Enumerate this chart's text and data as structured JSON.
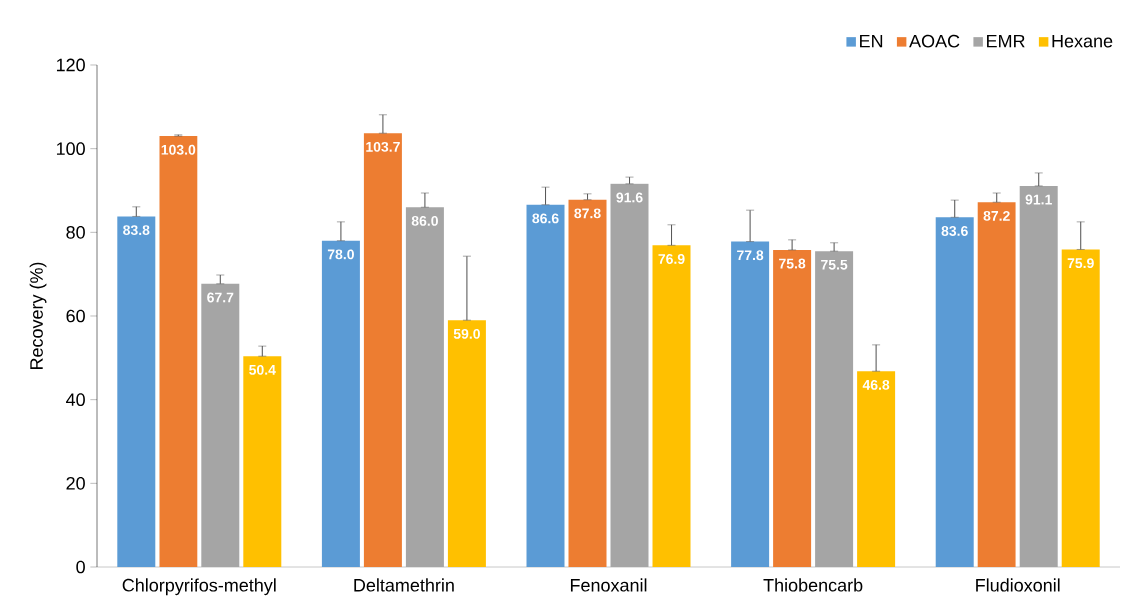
{
  "chart_data": {
    "type": "bar",
    "ylabel": "Recovery (%)",
    "categories": [
      "Chlorpyrifos-methyl",
      "Deltamethrin",
      "Fenoxanil",
      "Thiobencarb",
      "Fludioxonil"
    ],
    "series": [
      {
        "name": "EN",
        "color": "#5b9bd5",
        "values": [
          83.8,
          78.0,
          86.6,
          77.8,
          83.6
        ],
        "value_labels": [
          "83.8",
          "78.0",
          "86.6",
          "77.8",
          "83.6"
        ],
        "errors": [
          [
            83.8,
            86.1
          ],
          [
            78.0,
            82.5
          ],
          [
            86.6,
            90.8
          ],
          [
            77.8,
            85.3
          ],
          [
            83.6,
            87.7
          ]
        ]
      },
      {
        "name": "AOAC",
        "color": "#ed7d31",
        "values": [
          103.0,
          103.7,
          87.8,
          75.8,
          87.2
        ],
        "value_labels": [
          "103.0",
          "103.7",
          "87.8",
          "75.8",
          "87.2"
        ],
        "errors": [
          [
            103.0,
            103.3
          ],
          [
            103.7,
            108.1
          ],
          [
            87.8,
            89.2
          ],
          [
            75.8,
            78.2
          ],
          [
            87.2,
            89.4
          ]
        ]
      },
      {
        "name": "EMR",
        "color": "#a5a5a5",
        "values": [
          67.7,
          86.0,
          91.6,
          75.5,
          91.1
        ],
        "value_labels": [
          "67.7",
          "86.0",
          "91.6",
          "75.5",
          "91.1"
        ],
        "errors": [
          [
            67.7,
            69.8
          ],
          [
            86.0,
            89.4
          ],
          [
            91.6,
            93.2
          ],
          [
            75.5,
            77.5
          ],
          [
            91.1,
            94.2
          ]
        ]
      },
      {
        "name": "Hexane",
        "color": "#ffc000",
        "values": [
          50.4,
          59.0,
          76.9,
          46.8,
          75.9
        ],
        "value_labels": [
          "50.4",
          "59.0",
          "76.9",
          "46.8",
          "75.9"
        ],
        "errors": [
          [
            50.4,
            52.8
          ],
          [
            59.0,
            74.3
          ],
          [
            76.9,
            81.8
          ],
          [
            46.8,
            53.1
          ],
          [
            75.9,
            82.5
          ]
        ]
      }
    ],
    "ylim": [
      0,
      120
    ],
    "yticks": [
      0,
      20,
      40,
      60,
      80,
      100,
      120
    ],
    "grid": false,
    "legend": "top right"
  }
}
